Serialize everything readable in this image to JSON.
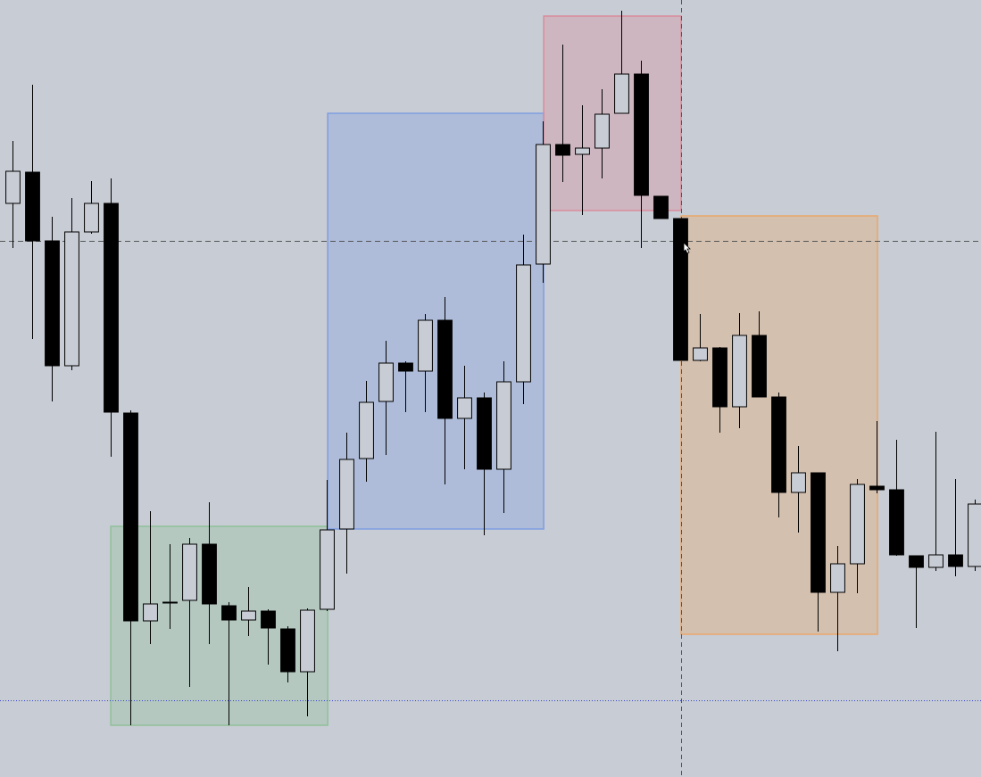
{
  "chart_data": {
    "type": "candlestick",
    "x": [
      0,
      1,
      2,
      3,
      4,
      5,
      6,
      7,
      8,
      9,
      10,
      11,
      12,
      13,
      14,
      15,
      16,
      17,
      18,
      19,
      20,
      21,
      22,
      23,
      24,
      25,
      26,
      27,
      28,
      29,
      30,
      31,
      32,
      33,
      34,
      35,
      36,
      37,
      38,
      39,
      40,
      41,
      42,
      43,
      44,
      45,
      46,
      47,
      48,
      49
    ],
    "open": [
      643,
      678,
      601,
      461,
      611,
      643,
      408,
      175,
      195,
      198,
      261,
      192,
      176,
      186,
      166,
      118,
      188,
      278,
      357,
      421,
      464,
      455,
      512,
      402,
      425,
      345,
      443,
      575,
      709,
      698,
      705,
      744,
      788,
      651,
      626,
      467,
      481,
      415,
      495,
      426,
      319,
      341,
      207,
      239,
      326,
      322,
      248,
      235,
      249,
      236
    ],
    "high": [
      713,
      776,
      628,
      649,
      668,
      671,
      411,
      298,
      261,
      268,
      308,
      196,
      213,
      188,
      169,
      189,
      333,
      386,
      444,
      489,
      466,
      519,
      538,
      461,
      431,
      466,
      608,
      735,
      821,
      753,
      771,
      859,
      803,
      651,
      626,
      519,
      482,
      520,
      522,
      431,
      371,
      341,
      259,
      334,
      399,
      378,
      248,
      387,
      334,
      311
    ],
    "low": [
      593,
      491,
      421,
      456,
      609,
      359,
      58,
      149,
      166,
      101,
      149,
      58,
      158,
      126,
      106,
      68,
      186,
      228,
      331,
      361,
      409,
      409,
      328,
      345,
      271,
      296,
      418,
      554,
      667,
      630,
      671,
      744,
      593,
      626,
      467,
      466,
      386,
      391,
      426,
      291,
      274,
      163,
      141,
      206,
      318,
      248,
      167,
      231,
      225,
      231
    ],
    "close": [
      679,
      601,
      461,
      611,
      643,
      409,
      175,
      194,
      196,
      261,
      194,
      176,
      186,
      167,
      118,
      187,
      277,
      356,
      420,
      464,
      455,
      512,
      402,
      425,
      345,
      443,
      574,
      709,
      697,
      705,
      743,
      788,
      652,
      626,
      467,
      481,
      415,
      495,
      426,
      319,
      341,
      207,
      239,
      328,
      322,
      249,
      235,
      249,
      236,
      306
    ],
    "up_color": "#c8ccd4",
    "down_color": "#000000",
    "xlim": [
      -0.64,
      49.32
    ],
    "ylim": [
      0,
      871
    ],
    "zones": [
      {
        "color": "#8fc09a",
        "x": [
          5,
          16.05
        ],
        "y": [
          58,
          281
        ]
      },
      {
        "color": "#7f9de2",
        "x": [
          16.05,
          27.05
        ],
        "y": [
          278,
          744
        ]
      },
      {
        "color": "#d98b9c",
        "x": [
          27.05,
          34.05
        ],
        "y": [
          635,
          853
        ]
      },
      {
        "color": "#eaa86a",
        "x": [
          34.05,
          44.05
        ],
        "y": [
          160,
          629
        ]
      }
    ],
    "hlines": [
      {
        "value": 601,
        "color": "#555555",
        "style": "dashed"
      },
      {
        "value": 86,
        "color": "#3344cc",
        "style": "dotted"
      }
    ]
  }
}
